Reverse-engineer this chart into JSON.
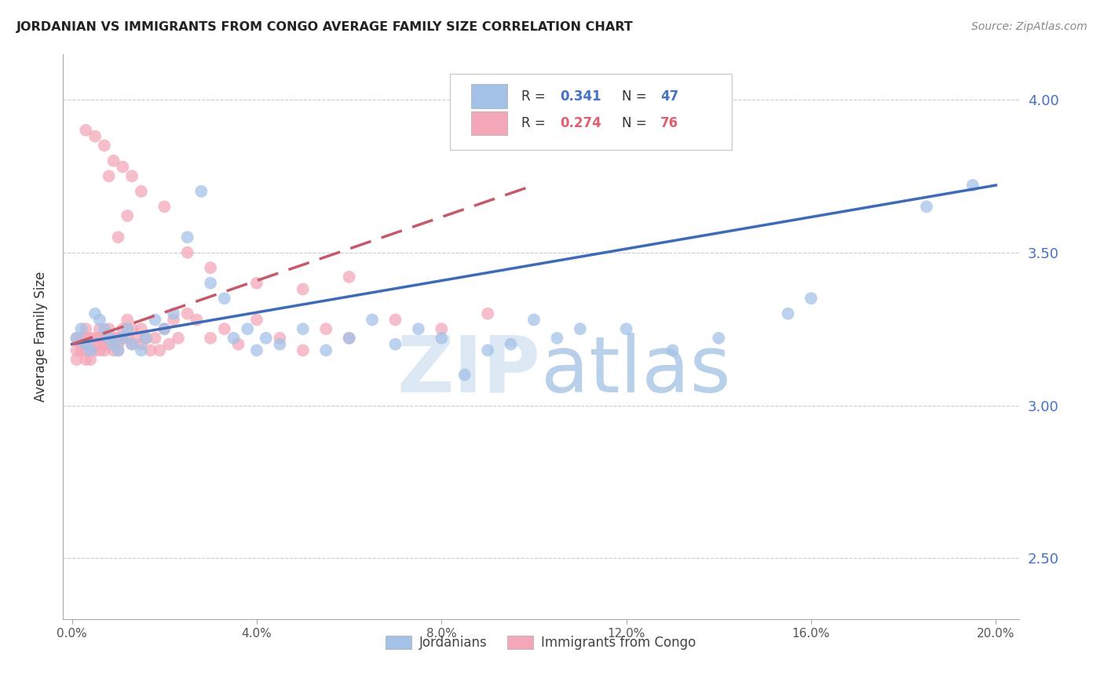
{
  "title": "JORDANIAN VS IMMIGRANTS FROM CONGO AVERAGE FAMILY SIZE CORRELATION CHART",
  "source": "Source: ZipAtlas.com",
  "ylabel": "Average Family Size",
  "yticks": [
    2.5,
    3.0,
    3.5,
    4.0
  ],
  "xlim": [
    0.0,
    0.2
  ],
  "ylim": [
    2.3,
    4.15
  ],
  "legend_blue_r": "R = 0.341",
  "legend_blue_n": "N = 47",
  "legend_pink_r": "R = 0.274",
  "legend_pink_n": "N = 76",
  "legend_label_blue": "Jordanians",
  "legend_label_pink": "Immigrants from Congo",
  "blue_color": "#a4c2e8",
  "pink_color": "#f4a7b9",
  "blue_line_color": "#3d6bb5",
  "pink_line_color": "#c45a6a",
  "watermark_zip": "ZIP",
  "watermark_atlas": "atlas",
  "blue_scatter_x": [
    0.001,
    0.002,
    0.003,
    0.004,
    0.005,
    0.006,
    0.007,
    0.008,
    0.009,
    0.01,
    0.011,
    0.012,
    0.013,
    0.015,
    0.016,
    0.018,
    0.02,
    0.022,
    0.025,
    0.028,
    0.03,
    0.033,
    0.035,
    0.038,
    0.04,
    0.042,
    0.045,
    0.05,
    0.055,
    0.06,
    0.065,
    0.07,
    0.075,
    0.08,
    0.085,
    0.09,
    0.095,
    0.1,
    0.105,
    0.11,
    0.12,
    0.13,
    0.14,
    0.155,
    0.16,
    0.185,
    0.195
  ],
  "blue_scatter_y": [
    3.22,
    3.25,
    3.2,
    3.18,
    3.3,
    3.28,
    3.25,
    3.22,
    3.2,
    3.18,
    3.22,
    3.25,
    3.2,
    3.18,
    3.22,
    3.28,
    3.25,
    3.3,
    3.55,
    3.7,
    3.4,
    3.35,
    3.22,
    3.25,
    3.18,
    3.22,
    3.2,
    3.25,
    3.18,
    3.22,
    3.28,
    3.2,
    3.25,
    3.22,
    3.1,
    3.18,
    3.2,
    3.28,
    3.22,
    3.25,
    3.25,
    3.18,
    3.22,
    3.3,
    3.35,
    3.65,
    3.72
  ],
  "pink_scatter_x": [
    0.001,
    0.001,
    0.001,
    0.002,
    0.002,
    0.002,
    0.003,
    0.003,
    0.003,
    0.003,
    0.004,
    0.004,
    0.004,
    0.005,
    0.005,
    0.005,
    0.006,
    0.006,
    0.006,
    0.007,
    0.007,
    0.007,
    0.008,
    0.008,
    0.008,
    0.009,
    0.009,
    0.01,
    0.01,
    0.01,
    0.011,
    0.011,
    0.012,
    0.012,
    0.013,
    0.013,
    0.014,
    0.015,
    0.015,
    0.016,
    0.017,
    0.018,
    0.019,
    0.02,
    0.021,
    0.022,
    0.023,
    0.025,
    0.027,
    0.03,
    0.033,
    0.036,
    0.04,
    0.045,
    0.05,
    0.055,
    0.06,
    0.07,
    0.08,
    0.09,
    0.01,
    0.012,
    0.015,
    0.008,
    0.02,
    0.025,
    0.03,
    0.04,
    0.05,
    0.06,
    0.003,
    0.005,
    0.007,
    0.009,
    0.011,
    0.013
  ],
  "pink_scatter_y": [
    3.22,
    3.18,
    3.15,
    3.2,
    3.18,
    3.22,
    3.25,
    3.22,
    3.18,
    3.15,
    3.22,
    3.18,
    3.15,
    3.22,
    3.2,
    3.18,
    3.25,
    3.22,
    3.18,
    3.22,
    3.2,
    3.18,
    3.22,
    3.25,
    3.2,
    3.22,
    3.18,
    3.22,
    3.2,
    3.18,
    3.25,
    3.22,
    3.28,
    3.22,
    3.25,
    3.2,
    3.22,
    3.25,
    3.2,
    3.22,
    3.18,
    3.22,
    3.18,
    3.25,
    3.2,
    3.28,
    3.22,
    3.3,
    3.28,
    3.22,
    3.25,
    3.2,
    3.28,
    3.22,
    3.18,
    3.25,
    3.22,
    3.28,
    3.25,
    3.3,
    3.55,
    3.62,
    3.7,
    3.75,
    3.65,
    3.5,
    3.45,
    3.4,
    3.38,
    3.42,
    3.9,
    3.88,
    3.85,
    3.8,
    3.78,
    3.75
  ]
}
